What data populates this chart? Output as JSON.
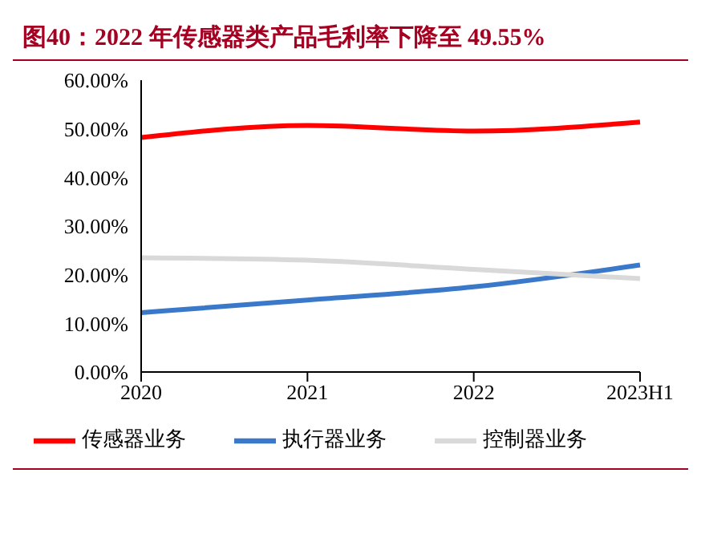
{
  "chart_data": {
    "type": "line",
    "title": "图40：2022 年传感器类产品毛利率下降至 49.55%",
    "categories": [
      "2020",
      "2021",
      "2022",
      "2023H1"
    ],
    "series": [
      {
        "name": "传感器业务",
        "color": "#ff0000",
        "values": [
          48.2,
          50.7,
          49.55,
          51.4
        ]
      },
      {
        "name": "执行器业务",
        "color": "#3a78c9",
        "values": [
          12.2,
          14.8,
          17.5,
          22.0
        ]
      },
      {
        "name": "控制器业务",
        "color": "#d9d9d9",
        "values": [
          23.5,
          23.0,
          21.1,
          19.2
        ]
      }
    ],
    "ylim": [
      0,
      60
    ],
    "yticks": [
      {
        "value": 0,
        "label": "0.00%"
      },
      {
        "value": 10,
        "label": "10.00%"
      },
      {
        "value": 20,
        "label": "20.00%"
      },
      {
        "value": 30,
        "label": "30.00%"
      },
      {
        "value": 40,
        "label": "40.00%"
      },
      {
        "value": 50,
        "label": "50.00%"
      },
      {
        "value": 60,
        "label": "60.00%"
      }
    ],
    "grid": false,
    "legend": "bottom",
    "marker": "none",
    "line_style": "solid"
  }
}
